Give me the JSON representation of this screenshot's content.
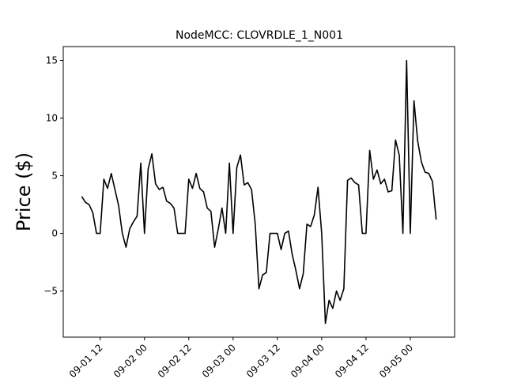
{
  "chart_data": {
    "type": "line",
    "title": "NodeMCC: CLOVRDLE_1_N001",
    "y_label": "Price ($)",
    "x": [
      "09-01 07",
      "09-01 08",
      "09-01 09",
      "09-01 10",
      "09-01 11",
      "09-01 12",
      "09-01 13",
      "09-01 14",
      "09-01 15",
      "09-01 16",
      "09-01 17",
      "09-01 18",
      "09-01 19",
      "09-01 20",
      "09-01 21",
      "09-01 22",
      "09-01 23",
      "09-02 00",
      "09-02 01",
      "09-02 02",
      "09-02 03",
      "09-02 04",
      "09-02 05",
      "09-02 06",
      "09-02 07",
      "09-02 08",
      "09-02 09",
      "09-02 10",
      "09-02 11",
      "09-02 12",
      "09-02 13",
      "09-02 14",
      "09-02 15",
      "09-02 16",
      "09-02 17",
      "09-02 18",
      "09-02 19",
      "09-02 20",
      "09-02 21",
      "09-02 22",
      "09-02 23",
      "09-03 00",
      "09-03 01",
      "09-03 02",
      "09-03 03",
      "09-03 04",
      "09-03 05",
      "09-03 06",
      "09-03 07",
      "09-03 08",
      "09-03 09",
      "09-03 10",
      "09-03 11",
      "09-03 12",
      "09-03 13",
      "09-03 14",
      "09-03 15",
      "09-03 16",
      "09-03 17",
      "09-03 18",
      "09-03 19",
      "09-03 20",
      "09-03 21",
      "09-03 22",
      "09-03 23",
      "09-04 00",
      "09-04 01",
      "09-04 02",
      "09-04 03",
      "09-04 04",
      "09-04 05",
      "09-04 06",
      "09-04 07",
      "09-04 08",
      "09-04 09",
      "09-04 10",
      "09-04 11",
      "09-04 12",
      "09-04 13",
      "09-04 14",
      "09-04 15",
      "09-04 16",
      "09-04 17",
      "09-04 18",
      "09-04 19",
      "09-04 20",
      "09-04 21",
      "09-04 22",
      "09-04 23",
      "09-05 00",
      "09-05 01",
      "09-05 02",
      "09-05 03",
      "09-05 04",
      "09-05 05",
      "09-05 06",
      "09-05 07"
    ],
    "values": [
      3.2,
      2.7,
      2.5,
      1.8,
      0,
      0,
      4.7,
      3.9,
      5.2,
      3.8,
      2.4,
      0,
      -1.2,
      0.4,
      1.0,
      1.5,
      6.1,
      0,
      5.6,
      6.9,
      4.3,
      3.8,
      4.0,
      2.8,
      2.6,
      2.2,
      0,
      0,
      0,
      4.7,
      3.9,
      5.2,
      3.9,
      3.6,
      2.2,
      1.9,
      -1.2,
      0.4,
      2.2,
      0,
      6.1,
      0,
      5.7,
      6.8,
      4.2,
      4.4,
      3.8,
      0.8,
      -4.8,
      -3.6,
      -3.4,
      0,
      0,
      0,
      -1.4,
      0,
      0.2,
      -1.8,
      -3.2,
      -4.8,
      -3.5,
      0.8,
      0.6,
      1.6,
      4.0,
      0,
      -7.8,
      -5.8,
      -6.5,
      -5.0,
      -5.8,
      -4.8,
      4.6,
      4.8,
      4.4,
      4.2,
      0,
      0,
      7.2,
      4.7,
      5.5,
      4.3,
      4.7,
      3.6,
      3.7,
      8.1,
      6.8,
      0,
      15.0,
      0,
      11.5,
      8.0,
      6.2,
      5.3,
      5.2,
      4.5,
      1.2
    ],
    "color": "#000000",
    "xlim": [
      "09-01 02",
      "09-05 12"
    ],
    "xticks": [
      "09-01 12",
      "09-02 00",
      "09-02 12",
      "09-03 00",
      "09-03 12",
      "09-04 00",
      "09-04 12",
      "09-05 00"
    ],
    "ylim": [
      -9.0,
      16.2
    ],
    "yticks": [
      {
        "value": -5,
        "label": "−5"
      },
      0,
      5,
      10,
      15
    ]
  }
}
